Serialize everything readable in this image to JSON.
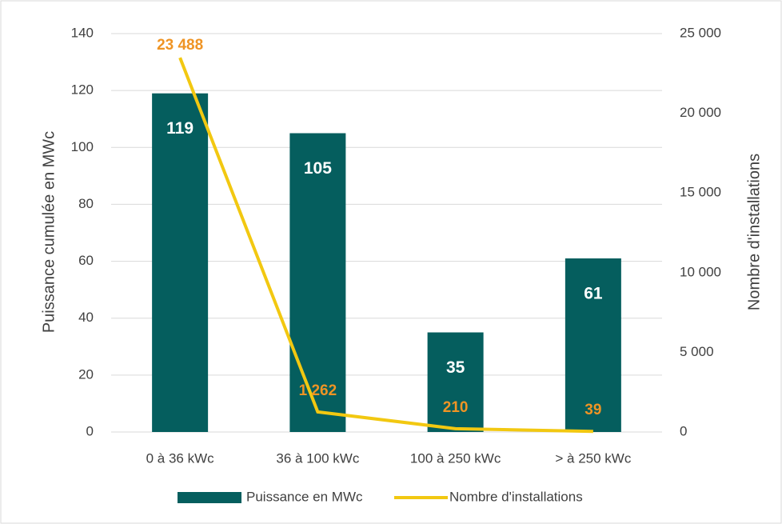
{
  "chart_data": {
    "type": "bar-line",
    "categories": [
      "0 à 36 kWc",
      "36 à 100 kWc",
      "100 à 250 kWc",
      "> à 250 kWc"
    ],
    "y_label": "Puissance cumulée en MWc",
    "y2_label": "Nombre d'installations",
    "ylim": [
      0,
      140
    ],
    "yticks": [
      0,
      20,
      40,
      60,
      80,
      100,
      120,
      140
    ],
    "y2lim": [
      0,
      25000
    ],
    "y2ticks": [
      0,
      {
        "value": 5000,
        "label": "5 000"
      },
      {
        "value": 10000,
        "label": "10 000"
      },
      {
        "value": 15000,
        "label": "15 000"
      },
      {
        "value": 20000,
        "label": "20 000"
      },
      {
        "value": 25000,
        "label": "25 000"
      }
    ],
    "grid": true,
    "legend": "bottom",
    "series": [
      {
        "name": "Puissance en MWc",
        "type": "bar",
        "color": "#055e5e",
        "values": [
          119,
          105,
          35,
          61
        ]
      },
      {
        "name": "Nombre d'installations",
        "type": "line",
        "axis": "y2",
        "color": "#f2c811",
        "label_color": "#ef9424",
        "values": [
          23488,
          1262,
          210,
          39
        ],
        "value_labels": [
          "23 488",
          "1 262",
          "210",
          "39"
        ]
      }
    ]
  }
}
